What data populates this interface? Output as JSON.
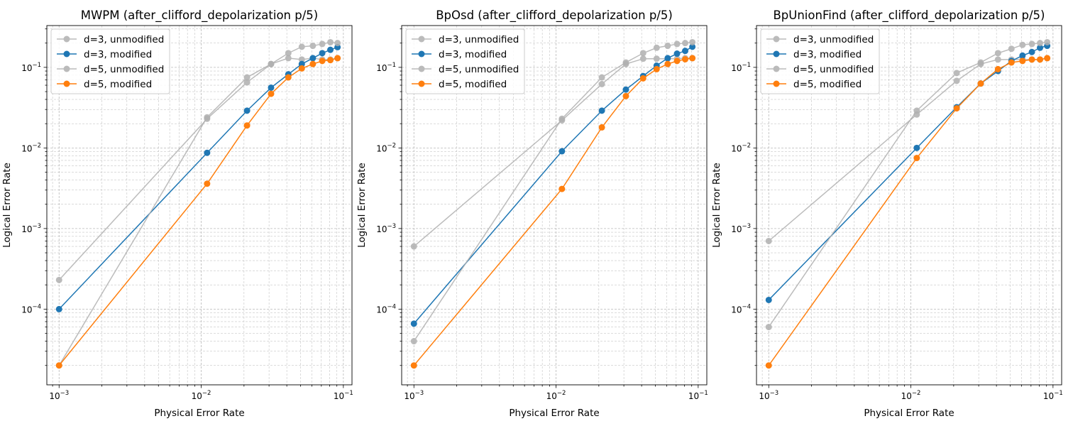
{
  "colors": {
    "unmodified": "#b0b0b0",
    "modified_d3": "#1f77b4",
    "modified_d5": "#ff7f0e",
    "grid": "#b0b0b0"
  },
  "chart_data": [
    {
      "type": "line",
      "title": "MWPM (after_clifford_depolarization p/5)",
      "xlabel": "Physical Error Rate",
      "ylabel": "Logical Error Rate",
      "xscale": "log",
      "yscale": "log",
      "xlim": [
        0.00082,
        0.115
      ],
      "ylim": [
        1.15e-05,
        0.33
      ],
      "xticks": [
        {
          "value": 0.001,
          "base": "10",
          "exp": "−3"
        },
        {
          "value": 0.01,
          "base": "10",
          "exp": "−2"
        },
        {
          "value": 0.1,
          "base": "10",
          "exp": "−1"
        }
      ],
      "yticks": [
        {
          "value": 0.0001,
          "base": "10",
          "exp": "−4"
        },
        {
          "value": 0.001,
          "base": "10",
          "exp": "−3"
        },
        {
          "value": 0.01,
          "base": "10",
          "exp": "−2"
        },
        {
          "value": 0.1,
          "base": "10",
          "exp": "−1"
        }
      ],
      "grid": true,
      "legend_position": "top-left",
      "x": [
        0.001,
        0.011,
        0.021,
        0.031,
        0.041,
        0.051,
        0.061,
        0.071,
        0.081,
        0.091
      ],
      "series": [
        {
          "name": "d=3, unmodified",
          "values": [
            0.00023,
            0.023,
            0.065,
            0.11,
            0.13,
            0.125,
            0.13,
            0.125,
            0.125,
            0.13
          ]
        },
        {
          "name": "d=3, modified",
          "values": [
            0.0001,
            0.0087,
            0.029,
            0.056,
            0.082,
            0.11,
            0.13,
            0.15,
            0.165,
            0.178
          ]
        },
        {
          "name": "d=5, unmodified",
          "values": [
            2e-05,
            0.024,
            0.075,
            0.11,
            0.15,
            0.18,
            0.185,
            0.195,
            0.205,
            0.2
          ]
        },
        {
          "name": "d=5, modified",
          "values": [
            2e-05,
            0.0036,
            0.019,
            0.047,
            0.075,
            0.097,
            0.11,
            0.12,
            0.123,
            0.13
          ]
        }
      ]
    },
    {
      "type": "line",
      "title": "BpOsd (after_clifford_depolarization p/5)",
      "xlabel": "Physical Error Rate",
      "ylabel": "Logical Error Rate",
      "xscale": "log",
      "yscale": "log",
      "xlim": [
        0.00082,
        0.115
      ],
      "ylim": [
        1.15e-05,
        0.33
      ],
      "xticks": [
        {
          "value": 0.001,
          "base": "10",
          "exp": "−3"
        },
        {
          "value": 0.01,
          "base": "10",
          "exp": "−2"
        },
        {
          "value": 0.1,
          "base": "10",
          "exp": "−1"
        }
      ],
      "yticks": [
        {
          "value": 0.0001,
          "base": "10",
          "exp": "−4"
        },
        {
          "value": 0.001,
          "base": "10",
          "exp": "−3"
        },
        {
          "value": 0.01,
          "base": "10",
          "exp": "−2"
        },
        {
          "value": 0.1,
          "base": "10",
          "exp": "−1"
        }
      ],
      "grid": true,
      "legend_position": "top-left",
      "x": [
        0.001,
        0.011,
        0.021,
        0.031,
        0.041,
        0.051,
        0.061,
        0.071,
        0.081,
        0.091
      ],
      "series": [
        {
          "name": "d=3, unmodified",
          "values": [
            0.0006,
            0.022,
            0.062,
            0.11,
            0.128,
            0.128,
            0.128,
            0.128,
            0.13,
            0.13
          ]
        },
        {
          "name": "d=3, modified",
          "values": [
            6.6e-05,
            0.0091,
            0.029,
            0.053,
            0.078,
            0.105,
            0.13,
            0.148,
            0.16,
            0.18
          ]
        },
        {
          "name": "d=5, unmodified",
          "values": [
            4e-05,
            0.023,
            0.075,
            0.115,
            0.15,
            0.175,
            0.185,
            0.195,
            0.2,
            0.205
          ]
        },
        {
          "name": "d=5, modified",
          "values": [
            2e-05,
            0.0031,
            0.018,
            0.044,
            0.073,
            0.095,
            0.11,
            0.12,
            0.126,
            0.13
          ]
        }
      ]
    },
    {
      "type": "line",
      "title": "BpUnionFind (after_clifford_depolarization p/5)",
      "xlabel": "Physical Error Rate",
      "ylabel": "Logical Error Rate",
      "xscale": "log",
      "yscale": "log",
      "xlim": [
        0.00082,
        0.115
      ],
      "ylim": [
        1.15e-05,
        0.33
      ],
      "xticks": [
        {
          "value": 0.001,
          "base": "10",
          "exp": "−3"
        },
        {
          "value": 0.01,
          "base": "10",
          "exp": "−2"
        },
        {
          "value": 0.1,
          "base": "10",
          "exp": "−1"
        }
      ],
      "yticks": [
        {
          "value": 0.0001,
          "base": "10",
          "exp": "−4"
        },
        {
          "value": 0.001,
          "base": "10",
          "exp": "−3"
        },
        {
          "value": 0.01,
          "base": "10",
          "exp": "−2"
        },
        {
          "value": 0.1,
          "base": "10",
          "exp": "−1"
        }
      ],
      "grid": true,
      "legend_position": "top-left",
      "x": [
        0.001,
        0.011,
        0.021,
        0.031,
        0.041,
        0.051,
        0.061,
        0.071,
        0.081,
        0.091
      ],
      "series": [
        {
          "name": "d=3, unmodified",
          "values": [
            0.0007,
            0.026,
            0.068,
            0.11,
            0.125,
            0.125,
            0.125,
            0.125,
            0.125,
            0.13
          ]
        },
        {
          "name": "d=3, modified",
          "values": [
            0.00013,
            0.01,
            0.032,
            0.063,
            0.09,
            0.12,
            0.14,
            0.155,
            0.175,
            0.185
          ]
        },
        {
          "name": "d=5, unmodified",
          "values": [
            6e-05,
            0.029,
            0.085,
            0.115,
            0.15,
            0.17,
            0.19,
            0.195,
            0.2,
            0.205
          ]
        },
        {
          "name": "d=5, modified",
          "values": [
            2e-05,
            0.0075,
            0.031,
            0.063,
            0.095,
            0.115,
            0.12,
            0.125,
            0.125,
            0.13
          ]
        }
      ]
    }
  ]
}
